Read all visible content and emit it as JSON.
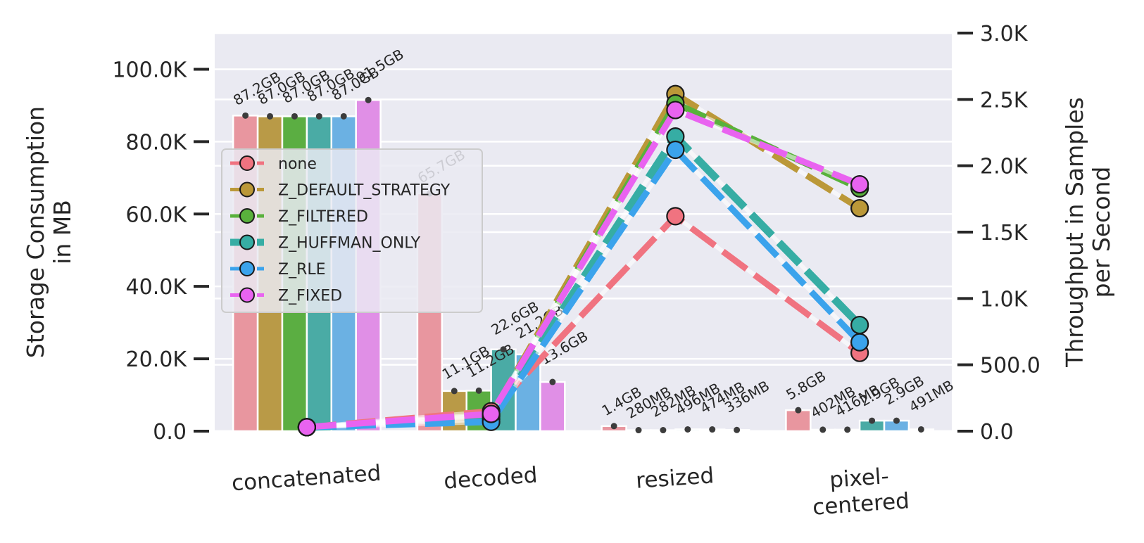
{
  "chart_data": {
    "type": "bar",
    "categories": [
      "concatenated",
      "decoded",
      "resized",
      "pixel-centered"
    ],
    "category_labels": [
      [
        "concatenated"
      ],
      [
        "decoded"
      ],
      [
        "resized"
      ],
      [
        "pixel-",
        "centered"
      ]
    ],
    "left_axis": {
      "label_lines": [
        "Storage Consumption",
        "in MB"
      ],
      "ylim": [
        0,
        110000
      ],
      "ticks": [
        0,
        20000,
        40000,
        60000,
        80000,
        100000
      ],
      "tick_labels": [
        "0.0",
        "20.0K",
        "40.0K",
        "60.0K",
        "80.0K",
        "100.0K"
      ]
    },
    "right_axis": {
      "label_lines": [
        "Throughput in Samples",
        "per Second"
      ],
      "ylim": [
        0,
        3000
      ],
      "ticks": [
        0,
        500,
        1000,
        1500,
        2000,
        2500,
        3000
      ],
      "tick_labels": [
        "0.0",
        "500.0",
        "1.0K",
        "1.5K",
        "2.0K",
        "2.5K",
        "3.0K"
      ]
    },
    "grid": true,
    "legend_position": "center-left",
    "series": [
      {
        "name": "none",
        "color": "#f07380",
        "bar_color": "#e8969f",
        "storage": [
          87200,
          65700,
          1400,
          5800
        ],
        "bar_labels": [
          "87.2GB",
          "65.7GB",
          "1.4GB",
          "5.8GB"
        ],
        "throughput": [
          30,
          150,
          1620,
          590
        ]
      },
      {
        "name": "Z_DEFAULT_STRATEGY",
        "color": "#bb9838",
        "bar_color": "#b99a47",
        "storage": [
          87000,
          11100,
          280,
          402
        ],
        "bar_labels": [
          "87.0GB",
          "11.1GB",
          "280MB",
          "402MB"
        ],
        "throughput": [
          30,
          120,
          2540,
          1680
        ]
      },
      {
        "name": "Z_FILTERED",
        "color": "#59b13c",
        "bar_color": "#5bae42",
        "storage": [
          87000,
          11200,
          282,
          416
        ],
        "bar_labels": [
          "87.0GB",
          "11.2GB",
          "282MB",
          "416MB"
        ],
        "throughput": [
          30,
          110,
          2470,
          1830
        ]
      },
      {
        "name": "Z_HUFFMAN_ONLY",
        "color": "#36ada4",
        "bar_color": "#4aaba5",
        "storage": [
          87000,
          22600,
          496,
          2900
        ],
        "bar_labels": [
          "87.0GB",
          "22.6GB",
          "496MB",
          "2.9GB"
        ],
        "throughput": [
          30,
          90,
          2220,
          800
        ]
      },
      {
        "name": "Z_RLE",
        "color": "#3ba3ec",
        "bar_color": "#6bb1e3",
        "storage": [
          87000,
          21200,
          474,
          2900
        ],
        "bar_labels": [
          "87.0GB",
          "21.2GB",
          "474MB",
          "2.9GB"
        ],
        "throughput": [
          30,
          70,
          2120,
          670
        ]
      },
      {
        "name": "Z_FIXED",
        "color": "#e963f0",
        "bar_color": "#e08fe6",
        "storage": [
          91500,
          13600,
          336,
          491
        ],
        "bar_labels": [
          "91.5GB",
          "13.6GB",
          "336MB",
          "491MB"
        ],
        "throughput": [
          30,
          130,
          2420,
          1860
        ]
      }
    ]
  }
}
